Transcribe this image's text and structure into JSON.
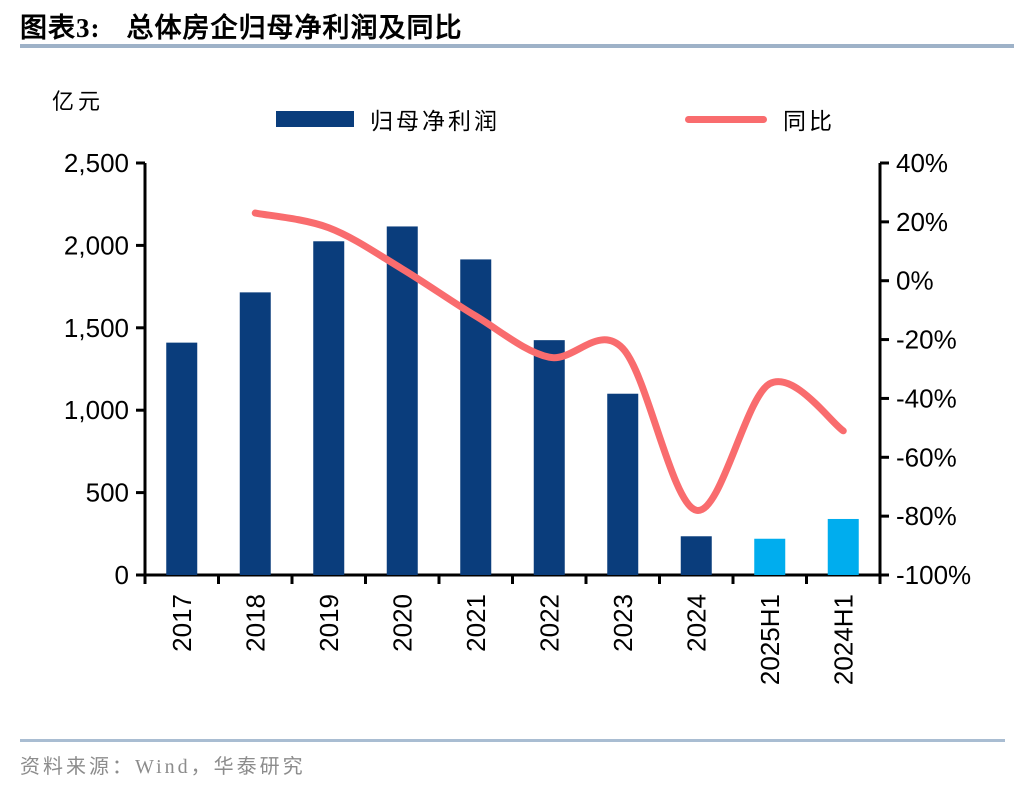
{
  "header": {
    "chart_label": "图表3:",
    "title": "总体房企归母净利润及同比"
  },
  "footer": {
    "source": "资料来源：Wind，华泰研究"
  },
  "chart_data": {
    "type": "bar+line",
    "title": "总体房企归母净利润及同比",
    "categories": [
      "2017",
      "2018",
      "2019",
      "2020",
      "2021",
      "2022",
      "2023",
      "2024",
      "2025H1",
      "2024H1"
    ],
    "series": [
      {
        "name": "归母净利润",
        "type": "bar",
        "axis": "left",
        "values": [
          1410,
          1715,
          2025,
          2115,
          1915,
          1425,
          1100,
          235,
          220,
          340
        ],
        "colors": [
          "#0A3D7C",
          "#0A3D7C",
          "#0A3D7C",
          "#0A3D7C",
          "#0A3D7C",
          "#0A3D7C",
          "#0A3D7C",
          "#0A3D7C",
          "#00ADEE",
          "#00ADEE"
        ]
      },
      {
        "name": "同比",
        "type": "line",
        "axis": "right",
        "color": "#F96C6E",
        "values": [
          null,
          23,
          18,
          4,
          -12,
          -26,
          -23,
          -78,
          -35,
          -51
        ]
      }
    ],
    "left_axis": {
      "unit": "亿元",
      "min": 0,
      "max": 2500,
      "step": 500,
      "tick_labels": [
        "2,500",
        "2,000",
        "1,500",
        "1,000",
        "500",
        "0"
      ]
    },
    "right_axis": {
      "min": -100,
      "max": 40,
      "step": 20,
      "tick_labels": [
        "40%",
        "20%",
        "0%",
        "-20%",
        "-40%",
        "-60%",
        "-80%",
        "-100%"
      ]
    },
    "grid": "off",
    "legend_position": "top-center"
  }
}
